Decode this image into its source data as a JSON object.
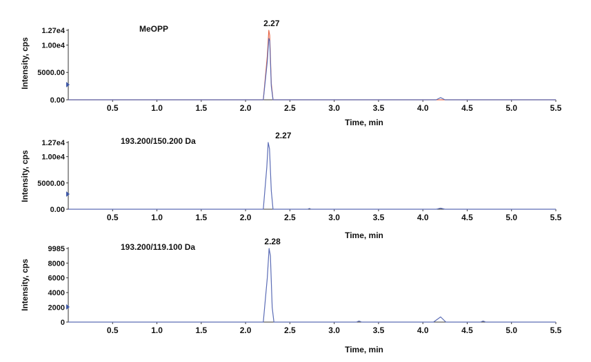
{
  "chart_data": [
    {
      "type": "line",
      "title": "MeOPP",
      "subtitle": "",
      "xlabel": "Time, min",
      "ylabel": "Intensity, cps",
      "xlim": [
        0,
        5.5
      ],
      "ylim": [
        0,
        12700
      ],
      "x_ticks": [
        0.5,
        1.0,
        1.5,
        2.0,
        2.5,
        3.0,
        3.5,
        4.0,
        4.5,
        5.0,
        5.5
      ],
      "x_tick_labels": [
        "0.5",
        "1.0",
        "1.5",
        "2.0",
        "2.5",
        "3.0",
        "3.5",
        "4.0",
        "4.5",
        "5.0",
        "5.5"
      ],
      "y_ticks": [
        0,
        5000,
        10000,
        12700
      ],
      "y_tick_labels": [
        "0.00",
        "5000.00",
        "1.00e4",
        "1.27e4"
      ],
      "grid": false,
      "peak_label": {
        "x": 2.27,
        "text": "2.27"
      },
      "series": [
        {
          "color": "#e8684a",
          "x": [
            0,
            2.2,
            2.245,
            2.262,
            2.272,
            2.29,
            2.31,
            5.5
          ],
          "y": [
            0,
            0,
            8000,
            12700,
            11800,
            3000,
            0,
            0
          ]
        },
        {
          "color": "#5a6bb5",
          "x": [
            0,
            2.2,
            2.245,
            2.262,
            2.272,
            2.29,
            2.31,
            4.15,
            4.2,
            4.25,
            5.5
          ],
          "y": [
            0,
            0,
            7000,
            11200,
            10800,
            2500,
            0,
            0,
            400,
            0,
            0
          ]
        }
      ]
    },
    {
      "type": "line",
      "title": "193.200/150.200 Da",
      "subtitle": "",
      "xlabel": "Time, min",
      "ylabel": "Intensity, cps",
      "xlim": [
        0,
        5.5
      ],
      "ylim": [
        0,
        12700
      ],
      "x_ticks": [
        0.5,
        1.0,
        1.5,
        2.0,
        2.5,
        3.0,
        3.5,
        4.0,
        4.5,
        5.0,
        5.5
      ],
      "x_tick_labels": [
        "0.5",
        "1.0",
        "1.5",
        "2.0",
        "2.5",
        "3.0",
        "3.5",
        "4.0",
        "4.5",
        "5.0",
        "5.5"
      ],
      "y_ticks": [
        0,
        5000,
        10000,
        12700
      ],
      "y_tick_labels": [
        "0.00",
        "5000.00",
        "1.00e4",
        "1.27e4"
      ],
      "grid": false,
      "peak_label": {
        "x": 2.27,
        "text": "2.27"
      },
      "series": [
        {
          "color": "#5a6bb5",
          "x": [
            0,
            2.2,
            2.24,
            2.255,
            2.27,
            2.29,
            2.31,
            2.7,
            2.72,
            2.74,
            4.15,
            4.2,
            4.25,
            5.5
          ],
          "y": [
            0,
            0,
            8000,
            12700,
            11500,
            3500,
            0,
            0,
            150,
            0,
            0,
            200,
            0,
            0
          ]
        }
      ]
    },
    {
      "type": "line",
      "title": "193.200/119.100 Da",
      "subtitle": "",
      "xlabel": "Time, min",
      "ylabel": "Intensity, cps",
      "xlim": [
        0,
        5.5
      ],
      "ylim": [
        0,
        9985
      ],
      "x_ticks": [
        0.5,
        1.0,
        1.5,
        2.0,
        2.5,
        3.0,
        3.5,
        4.0,
        4.5,
        5.0,
        5.5
      ],
      "x_tick_labels": [
        "0.5",
        "1.0",
        "1.5",
        "2.0",
        "2.5",
        "3.0",
        "3.5",
        "4.0",
        "4.5",
        "5.0",
        "5.5"
      ],
      "y_ticks": [
        0,
        2000,
        4000,
        6000,
        8000,
        9985
      ],
      "y_tick_labels": [
        "0",
        "2000",
        "4000",
        "6000",
        "8000",
        "9985"
      ],
      "grid": false,
      "peak_label": {
        "x": 2.28,
        "text": "2.28"
      },
      "series": [
        {
          "color": "#5a6bb5",
          "x": [
            0,
            2.2,
            2.245,
            2.265,
            2.28,
            2.3,
            2.32,
            3.25,
            3.28,
            3.31,
            4.12,
            4.2,
            4.26,
            4.65,
            4.68,
            4.71,
            5.5
          ],
          "y": [
            0,
            0,
            6000,
            9985,
            9000,
            2000,
            0,
            0,
            150,
            0,
            0,
            700,
            0,
            0,
            150,
            0,
            0
          ]
        }
      ]
    }
  ]
}
